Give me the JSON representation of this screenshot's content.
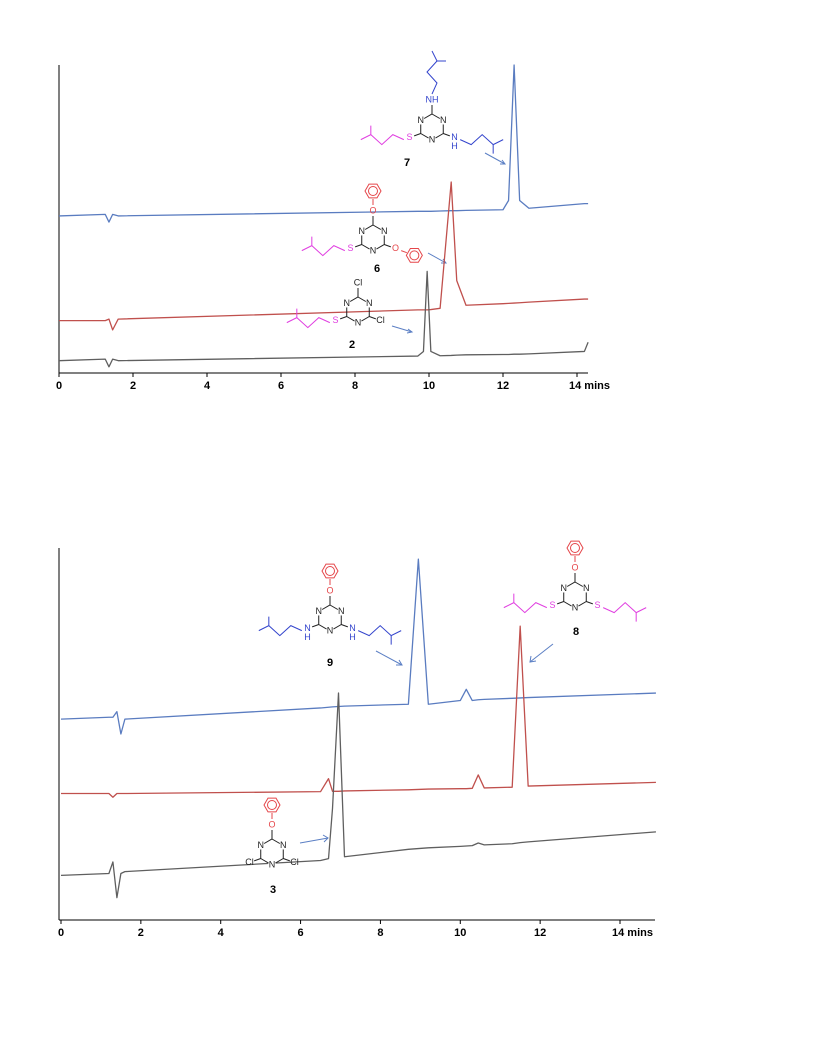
{
  "chart_data": [
    {
      "type": "line",
      "x": [
        0,
        1.25,
        1.35,
        1.45,
        1.6,
        9.7,
        9.85,
        9.95,
        10.05,
        10.3,
        10.6,
        10.75,
        11.0,
        12.0,
        12.15,
        12.3,
        12.45,
        12.7,
        14.2,
        14.3
      ],
      "xlim": [
        0,
        14.3
      ],
      "ylim": [
        0,
        100
      ],
      "xticks": [
        0,
        2,
        4,
        6,
        8,
        10,
        12,
        {
          "value": 14,
          "label": "14 mins"
        }
      ],
      "series": [
        {
          "color": "#5a7cc0",
          "values": [
            51,
            51.5,
            49,
            51.5,
            51,
            52.5,
            52.5,
            52.5,
            52.5,
            52.6,
            52.7,
            52.7,
            52.8,
            53,
            56,
            100,
            56,
            53.5,
            55,
            55
          ]
        },
        {
          "color": "#c0504d",
          "values": [
            17,
            17,
            17.5,
            14,
            17.5,
            20.5,
            20.5,
            20.5,
            20.6,
            21,
            62,
            30,
            22,
            22.5,
            22.6,
            22.7,
            22.8,
            23,
            24,
            24
          ]
        },
        {
          "color": "#5f5f5f",
          "values": [
            4,
            4.5,
            2,
            4.5,
            4,
            5.5,
            7,
            33,
            7,
            5.6,
            5.7,
            5.8,
            5.9,
            6,
            6,
            6.1,
            6.1,
            6.2,
            7,
            10
          ]
        }
      ],
      "annotations": [
        {
          "number": "7",
          "ring": [
            "N",
            "N",
            "N"
          ],
          "top": [
            "NH"
          ],
          "left": [
            "S"
          ],
          "right": [
            "N",
            "H"
          ]
        },
        {
          "number": "6",
          "ring": [
            "N",
            "N",
            "N"
          ],
          "top": [
            "O"
          ],
          "left": [
            "S"
          ],
          "right": [
            "O"
          ]
        },
        {
          "number": "2",
          "ring": [
            "N",
            "N",
            "N"
          ],
          "top": [
            "Cl"
          ],
          "left": [
            "S"
          ],
          "right": [
            "Cl"
          ]
        }
      ]
    },
    {
      "type": "line",
      "x": [
        0,
        1.2,
        1.3,
        1.4,
        1.5,
        1.6,
        6.5,
        6.7,
        6.8,
        6.95,
        7.1,
        8.7,
        8.95,
        9.2,
        10.0,
        10.15,
        10.3,
        10.45,
        10.6,
        11.3,
        11.5,
        11.7,
        14.9
      ],
      "xlim": [
        0,
        14.9
      ],
      "ylim": [
        0,
        100
      ],
      "xticks": [
        0,
        2,
        4,
        6,
        8,
        10,
        12,
        {
          "value": 14,
          "label": "14 mins"
        }
      ],
      "series": [
        {
          "color": "#5a7cc0",
          "values": [
            54,
            54.5,
            54.5,
            56,
            50,
            54,
            57,
            57.2,
            57.3,
            57.4,
            57.5,
            58,
            97,
            58,
            59,
            62,
            59,
            59.2,
            59.3,
            59.6,
            59.7,
            59.8,
            61
          ]
        },
        {
          "color": "#c0504d",
          "values": [
            34,
            34,
            33,
            34,
            34,
            34,
            34.5,
            38,
            34.6,
            34.6,
            34.7,
            35,
            35.1,
            35.2,
            35.3,
            35.3,
            35.4,
            39,
            35.5,
            35.7,
            79,
            36,
            37
          ]
        },
        {
          "color": "#5f5f5f",
          "values": [
            12,
            12.5,
            15.6,
            6,
            12.5,
            13,
            16,
            16.5,
            30,
            61,
            17,
            19,
            19.2,
            19.4,
            19.8,
            19.9,
            20,
            20.7,
            20.2,
            20.5,
            20.8,
            21,
            23.7
          ]
        }
      ],
      "annotations": [
        {
          "number": "9",
          "ring": [
            "N",
            "N",
            "N"
          ],
          "top": [
            "O"
          ],
          "left": [
            "N",
            "H"
          ],
          "right": [
            "N",
            "H"
          ]
        },
        {
          "number": "8",
          "ring": [
            "N",
            "N",
            "N"
          ],
          "top": [
            "O"
          ],
          "left": [
            "S"
          ],
          "right": [
            "S"
          ]
        },
        {
          "number": "3",
          "ring": [
            "N",
            "N",
            "N"
          ],
          "top": [
            "O"
          ],
          "left": [
            "Cl"
          ],
          "right": [
            "Cl"
          ]
        }
      ]
    }
  ]
}
